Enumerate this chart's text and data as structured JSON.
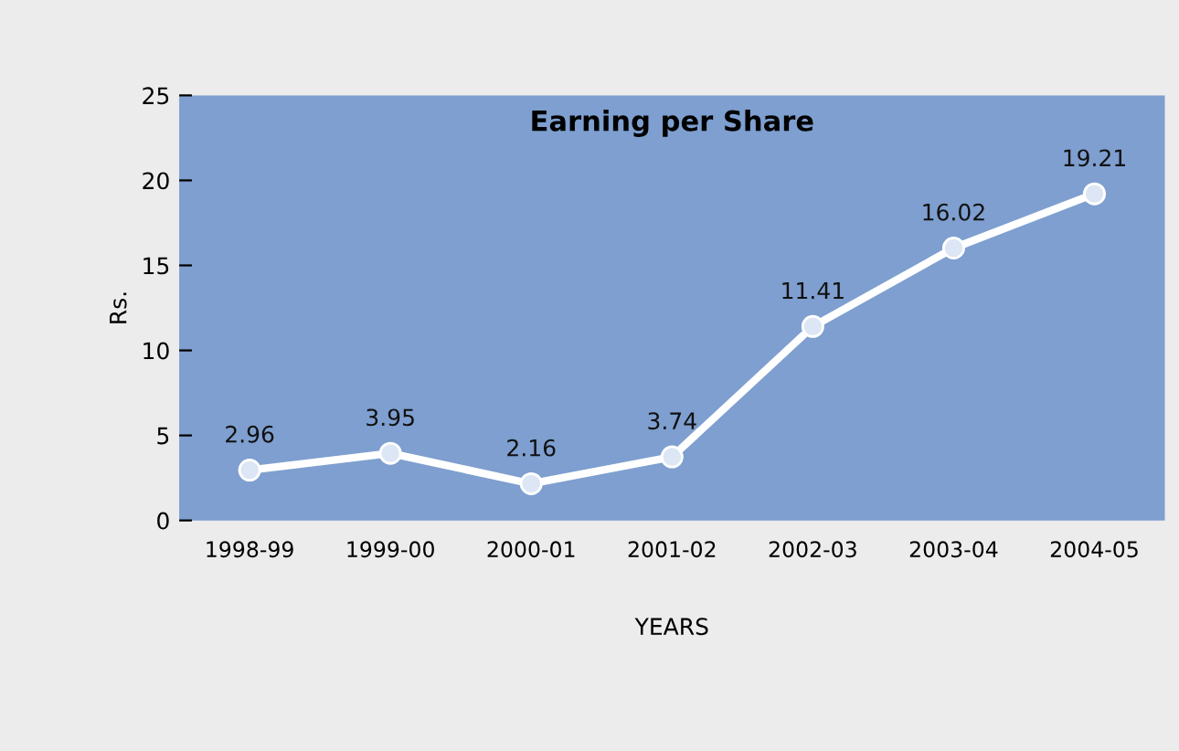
{
  "chart_data": {
    "type": "line",
    "title": "Earning per Share",
    "xlabel": "YEARS",
    "ylabel": "Rs.",
    "categories": [
      "1998-99",
      "1999-00",
      "2000-01",
      "2001-02",
      "2002-03",
      "2003-04",
      "2004-05"
    ],
    "series": [
      {
        "color": "#ffffff",
        "values": [
          2.96,
          3.95,
          2.16,
          3.74,
          11.41,
          16.02,
          19.21
        ]
      }
    ],
    "ylim": [
      0,
      25
    ],
    "yticks": [
      0,
      5,
      10,
      15,
      20,
      25
    ],
    "grid": false,
    "legend": false,
    "marker": "circle",
    "line_style": "solid",
    "data_labels": true
  }
}
